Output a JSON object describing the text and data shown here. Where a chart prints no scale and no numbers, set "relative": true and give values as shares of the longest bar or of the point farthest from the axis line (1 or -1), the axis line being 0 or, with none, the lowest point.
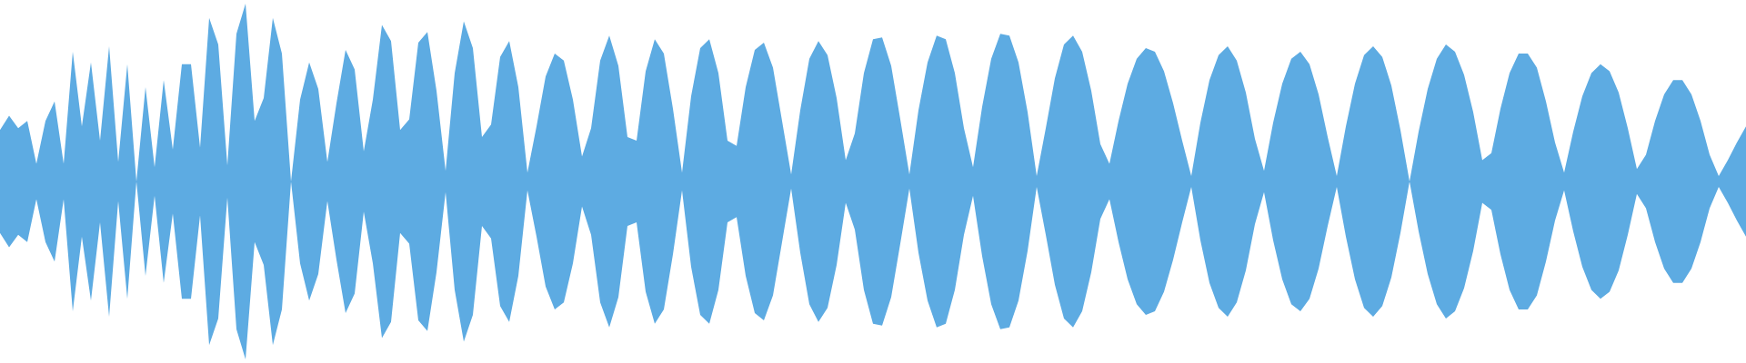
{
  "chart_data": {
    "type": "area",
    "relative": true,
    "ref_lines": [
      {
        "axis": "y",
        "value": 0,
        "color": "#5dabe2"
      }
    ],
    "categories": [
      null,
      null,
      null,
      null,
      null,
      null,
      null,
      null,
      null,
      null,
      null,
      null,
      null,
      null,
      null,
      null,
      null,
      null,
      null,
      null,
      null,
      null,
      null,
      null,
      null,
      null,
      null,
      null,
      null,
      null,
      null,
      null,
      null,
      null,
      null,
      null,
      null,
      null,
      null,
      null,
      null,
      null,
      null,
      null,
      null,
      null,
      null,
      null,
      null,
      null,
      null,
      null,
      null,
      null,
      null,
      null,
      null,
      null,
      null,
      null,
      null,
      null,
      null,
      null,
      null,
      null,
      null,
      null,
      null,
      null,
      null,
      null,
      null,
      null,
      null,
      null,
      null,
      null,
      null,
      null,
      null,
      null,
      null,
      null,
      null,
      null,
      null,
      null,
      null,
      null,
      null,
      null,
      null,
      null,
      null,
      null,
      null,
      null,
      null,
      null,
      null,
      null,
      null,
      null,
      null,
      null,
      null,
      null,
      null,
      null,
      null,
      null,
      null,
      null,
      null,
      null,
      null,
      null,
      null,
      null,
      null,
      null,
      null,
      null,
      null,
      null,
      null,
      null,
      null,
      null,
      null,
      null,
      null,
      null,
      null,
      null,
      null,
      null,
      null,
      null,
      null,
      null,
      null,
      null,
      null,
      null,
      null,
      null,
      null,
      null,
      null,
      null,
      null,
      null,
      null,
      null,
      null,
      null,
      null,
      null,
      null,
      null,
      null,
      null,
      null,
      null,
      null,
      null,
      null,
      null,
      null,
      null,
      null,
      null,
      null,
      null,
      null,
      null,
      null,
      null,
      null,
      null,
      null,
      null,
      null,
      null,
      null,
      null,
      null,
      null,
      null,
      null,
      null
    ],
    "series": [
      {
        "color": "#5dabe2",
        "values": [
          0.29,
          0.37,
          0.3,
          0.34,
          0.1,
          0.34,
          0.45,
          0.1,
          0.73,
          0.31,
          0.67,
          0.23,
          0.76,
          0.11,
          0.66,
          0,
          0.53,
          0.08,
          0.57,
          0.18,
          0.66,
          0.66,
          0.19,
          0.92,
          0.77,
          0.09,
          0.83,
          1,
          0.34,
          0.47,
          0.92,
          0.72,
          0,
          0.46,
          0.67,
          0.52,
          0.11,
          0.44,
          0.74,
          0.63,
          0.17,
          0.46,
          0.88,
          0.79,
          0.29,
          0.35,
          0.78,
          0.84,
          0.51,
          0.06,
          0.61,
          0.9,
          0.75,
          0.25,
          0.32,
          0.7,
          0.79,
          0.53,
          0.05,
          0.31,
          0.59,
          0.72,
          0.68,
          0.46,
          0.14,
          0.3,
          0.68,
          0.82,
          0.65,
          0.25,
          0.23,
          0.62,
          0.8,
          0.72,
          0.41,
          0.05,
          0.48,
          0.75,
          0.8,
          0.61,
          0.23,
          0.2,
          0.53,
          0.74,
          0.78,
          0.64,
          0.34,
          0.04,
          0.4,
          0.69,
          0.79,
          0.71,
          0.47,
          0.12,
          0.27,
          0.61,
          0.8,
          0.81,
          0.65,
          0.35,
          0.04,
          0.4,
          0.67,
          0.82,
          0.8,
          0.61,
          0.3,
          0.08,
          0.42,
          0.69,
          0.83,
          0.82,
          0.67,
          0.39,
          0.03,
          0.3,
          0.58,
          0.77,
          0.82,
          0.73,
          0.51,
          0.21,
          0.1,
          0.34,
          0.55,
          0.69,
          0.75,
          0.73,
          0.62,
          0.44,
          0.23,
          0.03,
          0.33,
          0.57,
          0.71,
          0.76,
          0.68,
          0.5,
          0.24,
          0.06,
          0.33,
          0.55,
          0.69,
          0.73,
          0.66,
          0.49,
          0.25,
          0.03,
          0.31,
          0.55,
          0.71,
          0.76,
          0.7,
          0.54,
          0.29,
          0,
          0.28,
          0.52,
          0.69,
          0.77,
          0.73,
          0.6,
          0.39,
          0.12,
          0.16,
          0.41,
          0.61,
          0.72,
          0.72,
          0.64,
          0.45,
          0.22,
          0.05,
          0.28,
          0.48,
          0.61,
          0.66,
          0.62,
          0.5,
          0.3,
          0.07,
          0.15,
          0.34,
          0.49,
          0.57,
          0.57,
          0.49,
          0.34,
          0.15,
          0.03,
          0.12,
          0.22,
          0.31
        ]
      },
      {
        "color": "#5dabe2",
        "values": [
          -0.29,
          -0.37,
          -0.3,
          -0.34,
          -0.1,
          -0.34,
          -0.45,
          -0.1,
          -0.73,
          -0.31,
          -0.67,
          -0.23,
          -0.76,
          -0.11,
          -0.66,
          0,
          -0.53,
          -0.08,
          -0.57,
          -0.18,
          -0.66,
          -0.66,
          -0.19,
          -0.92,
          -0.77,
          -0.09,
          -0.83,
          -1,
          -0.34,
          -0.47,
          -0.92,
          -0.72,
          0,
          -0.46,
          -0.67,
          -0.52,
          -0.11,
          -0.44,
          -0.74,
          -0.63,
          -0.17,
          -0.46,
          -0.88,
          -0.79,
          -0.29,
          -0.35,
          -0.78,
          -0.84,
          -0.51,
          -0.06,
          -0.61,
          -0.9,
          -0.75,
          -0.25,
          -0.32,
          -0.7,
          -0.79,
          -0.53,
          -0.05,
          -0.31,
          -0.59,
          -0.72,
          -0.68,
          -0.46,
          -0.14,
          -0.3,
          -0.68,
          -0.82,
          -0.65,
          -0.25,
          -0.23,
          -0.62,
          -0.8,
          -0.72,
          -0.41,
          -0.05,
          -0.48,
          -0.75,
          -0.8,
          -0.61,
          -0.23,
          -0.2,
          -0.53,
          -0.74,
          -0.78,
          -0.64,
          -0.34,
          -0.04,
          -0.4,
          -0.69,
          -0.79,
          -0.71,
          -0.47,
          -0.12,
          -0.27,
          -0.61,
          -0.8,
          -0.81,
          -0.65,
          -0.35,
          -0.04,
          -0.4,
          -0.67,
          -0.82,
          -0.8,
          -0.61,
          -0.3,
          -0.08,
          -0.42,
          -0.69,
          -0.83,
          -0.82,
          -0.67,
          -0.39,
          -0.03,
          -0.3,
          -0.58,
          -0.77,
          -0.82,
          -0.73,
          -0.51,
          -0.21,
          -0.1,
          -0.34,
          -0.55,
          -0.69,
          -0.75,
          -0.73,
          -0.62,
          -0.44,
          -0.23,
          -0.03,
          -0.33,
          -0.57,
          -0.71,
          -0.76,
          -0.68,
          -0.5,
          -0.24,
          -0.06,
          -0.33,
          -0.55,
          -0.69,
          -0.73,
          -0.66,
          -0.49,
          -0.25,
          -0.03,
          -0.31,
          -0.55,
          -0.71,
          -0.76,
          -0.7,
          -0.54,
          -0.29,
          0,
          -0.28,
          -0.52,
          -0.69,
          -0.77,
          -0.73,
          -0.6,
          -0.39,
          -0.12,
          -0.16,
          -0.41,
          -0.61,
          -0.72,
          -0.72,
          -0.64,
          -0.45,
          -0.22,
          -0.05,
          -0.28,
          -0.48,
          -0.61,
          -0.66,
          -0.62,
          -0.5,
          -0.3,
          -0.07,
          -0.15,
          -0.34,
          -0.49,
          -0.57,
          -0.57,
          -0.49,
          -0.34,
          -0.15,
          -0.03,
          -0.12,
          -0.22,
          -0.31
        ]
      }
    ]
  }
}
